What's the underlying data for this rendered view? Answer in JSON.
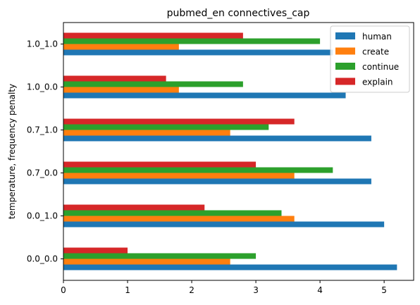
{
  "chart_data": {
    "type": "bar",
    "orientation": "horizontal",
    "title": "pubmed_en connectives_cap",
    "xlabel": "",
    "ylabel": "temperature, frequency penalty",
    "categories": [
      "0.0_0.0",
      "0.0_1.0",
      "0.7_0.0",
      "0.7_1.0",
      "1.0_0.0",
      "1.0_1.0"
    ],
    "xlim": [
      0,
      5.46
    ],
    "xticks": [
      0,
      1,
      2,
      3,
      4,
      5
    ],
    "grid": false,
    "legend_position": "top-right",
    "series": [
      {
        "name": "human",
        "color": "#1f77b4",
        "values": [
          5.2,
          5.0,
          4.8,
          4.8,
          4.4,
          4.2
        ]
      },
      {
        "name": "create",
        "color": "#ff7f0e",
        "values": [
          2.6,
          3.6,
          3.6,
          2.6,
          1.8,
          1.8
        ]
      },
      {
        "name": "continue",
        "color": "#2ca02c",
        "values": [
          3.0,
          3.4,
          4.2,
          3.2,
          2.8,
          4.0
        ]
      },
      {
        "name": "explain",
        "color": "#d62728",
        "values": [
          1.0,
          2.2,
          3.0,
          3.6,
          1.6,
          2.8
        ]
      }
    ]
  }
}
